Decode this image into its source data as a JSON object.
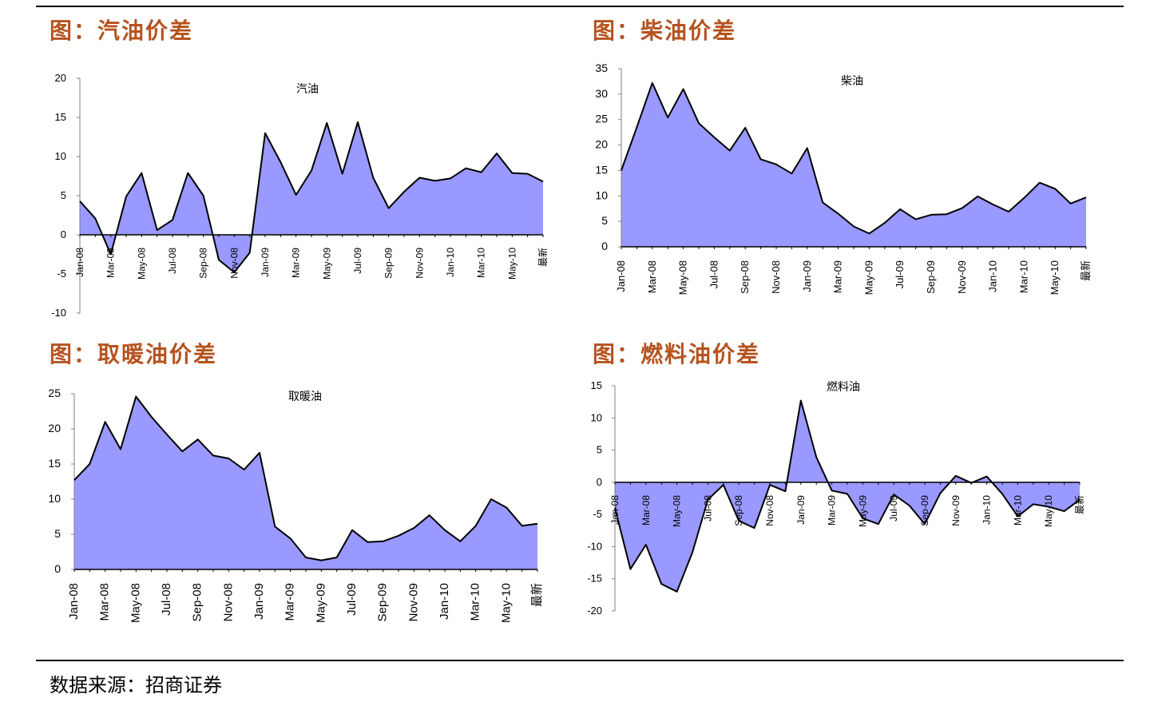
{
  "figures": [
    {
      "title": "图：汽油价差"
    },
    {
      "title": "图：柴油价差"
    },
    {
      "title": "图：取暖油价差"
    },
    {
      "title": "图：燃料油价差"
    }
  ],
  "footer": {
    "source": "数据来源：招商证券"
  },
  "chart_data": [
    {
      "type": "area",
      "title": "汽油",
      "ylim": [
        -10,
        20
      ],
      "yticks": [
        -10,
        -5,
        0,
        5,
        10,
        15,
        20
      ],
      "tick_labels": [
        "Jan-08",
        "Mar-08",
        "May-08",
        "Jul-08",
        "Sep-08",
        "Nov-08",
        "Jan-09",
        "Mar-09",
        "May-09",
        "Jul-09",
        "Sep-09",
        "Nov-09",
        "Jan-10",
        "Mar-10",
        "May-10",
        "最新"
      ],
      "values": [
        4.3,
        2.1,
        -2.5,
        4.9,
        7.9,
        0.6,
        1.9,
        7.9,
        5.0,
        -3.2,
        -4.8,
        -2.3,
        13.0,
        9.3,
        5.1,
        8.2,
        14.3,
        7.8,
        14.4,
        7.3,
        3.4,
        5.5,
        7.3,
        6.9,
        7.2,
        8.5,
        8.0,
        10.4,
        7.9,
        7.8,
        6.8
      ],
      "color": "#9999ff",
      "grid": false,
      "legend": "none"
    },
    {
      "type": "area",
      "title": "柴油",
      "ylim": [
        0,
        35
      ],
      "yticks": [
        0,
        5,
        10,
        15,
        20,
        25,
        30,
        35
      ],
      "tick_labels": [
        "Jan-08",
        "Mar-08",
        "May-08",
        "Jul-08",
        "Sep-08",
        "Nov-08",
        "Jan-09",
        "Mar-09",
        "May-09",
        "Jul-09",
        "Sep-09",
        "Nov-09",
        "Jan-10",
        "Mar-10",
        "May-10",
        "最新"
      ],
      "values": [
        15.0,
        23.5,
        32.2,
        25.4,
        31.0,
        24.3,
        21.5,
        18.9,
        23.4,
        17.2,
        16.2,
        14.4,
        19.4,
        8.7,
        6.5,
        4.0,
        2.6,
        4.7,
        7.4,
        5.4,
        6.3,
        6.4,
        7.6,
        9.9,
        8.3,
        6.9,
        9.6,
        12.6,
        11.4,
        8.5,
        9.7
      ],
      "color": "#9999ff",
      "grid": false,
      "legend": "none"
    },
    {
      "type": "area",
      "title": "取暖油",
      "ylim": [
        0,
        25
      ],
      "yticks": [
        0,
        5,
        10,
        15,
        20,
        25
      ],
      "tick_labels": [
        "Jan-08",
        "Mar-08",
        "May-08",
        "Jul-08",
        "Sep-08",
        "Nov-08",
        "Jan-09",
        "Mar-09",
        "May-09",
        "Jul-09",
        "Sep-09",
        "Nov-09",
        "Jan-10",
        "Mar-10",
        "May-10",
        "最新"
      ],
      "values": [
        12.7,
        15.0,
        21.0,
        17.1,
        24.6,
        21.7,
        19.2,
        16.8,
        18.5,
        16.2,
        15.8,
        14.2,
        16.6,
        6.1,
        4.4,
        1.7,
        1.3,
        1.7,
        5.6,
        3.9,
        4.0,
        4.8,
        5.9,
        7.7,
        5.6,
        4.0,
        6.2,
        10.0,
        8.8,
        6.2,
        6.5
      ],
      "color": "#9999ff",
      "grid": false,
      "legend": "none"
    },
    {
      "type": "area",
      "title": "燃料油",
      "ylim": [
        -20,
        15
      ],
      "yticks": [
        -20,
        -15,
        -10,
        -5,
        0,
        5,
        10,
        15
      ],
      "tick_labels": [
        "Jan-08",
        "Mar-08",
        "May-08",
        "Jul-08",
        "Sep-08",
        "Nov-08",
        "Jan-09",
        "Mar-09",
        "May-09",
        "Jul-09",
        "Sep-09",
        "Nov-09",
        "Jan-10",
        "Mar-10",
        "May-10",
        "最新"
      ],
      "values": [
        -4.0,
        -13.5,
        -9.7,
        -15.8,
        -17.0,
        -10.9,
        -2.7,
        -0.4,
        -6.0,
        -7.1,
        -0.4,
        -1.4,
        12.7,
        3.9,
        -1.3,
        -1.8,
        -5.6,
        -6.5,
        -1.9,
        -3.6,
        -6.5,
        -1.7,
        1.0,
        -0.1,
        0.9,
        -1.8,
        -5.3,
        -3.4,
        -3.8,
        -4.5,
        -2.7
      ],
      "color": "#9999ff",
      "grid": false,
      "legend": "none"
    }
  ]
}
